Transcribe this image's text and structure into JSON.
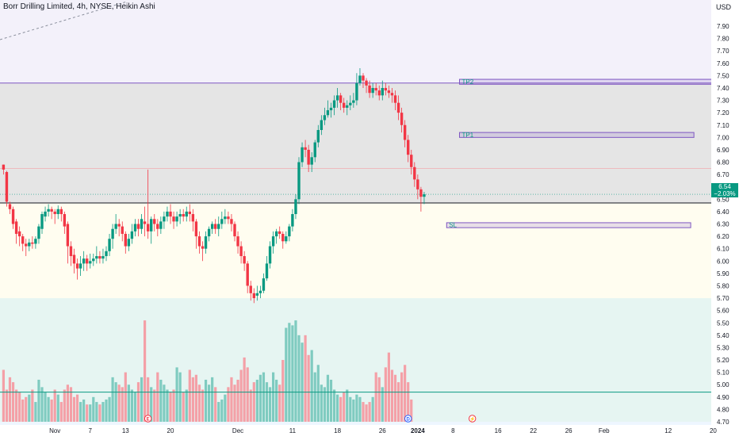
{
  "header": {
    "title": "Borr Drilling Limited, 4h, NYSE, Heikin Ashi",
    "currency": "USD"
  },
  "price_tag": {
    "price": "6.54",
    "change": "−2.03%"
  },
  "event_markers": [
    {
      "label": "E",
      "x_index": 45,
      "color": "#f23645"
    },
    {
      "label": "D",
      "x_index": 126,
      "color": "#2962ff"
    },
    {
      "label": "⚡",
      "x_index": 146,
      "color": "#f23645"
    }
  ],
  "annotations": [
    {
      "label": "TP2",
      "x_start": 142,
      "x_end": 222,
      "y_top": 7.47,
      "y_bottom": 7.43
    },
    {
      "label": "TP1",
      "x_start": 142,
      "x_end": 215,
      "y_top": 7.04,
      "y_bottom": 7.0
    },
    {
      "label": "SL",
      "x_start": 138,
      "x_end": 214,
      "y_top": 6.31,
      "y_bottom": 6.27
    }
  ],
  "zones": [
    {
      "name": "upper-zone",
      "y_from": 7.44,
      "y_to": 6.47,
      "color": "#e5e5e5"
    },
    {
      "name": "mid-zone",
      "y_from": 6.47,
      "y_to": 5.7,
      "color": "#fffdf0"
    },
    {
      "name": "lower-zone",
      "y_from": 5.7,
      "y_to": 4.7,
      "color": "#e6f5f2"
    },
    {
      "name": "top-zone",
      "y_from": 7.9,
      "y_to": 7.44,
      "color": "#f1eff9"
    }
  ],
  "lines": {
    "support": 6.47,
    "current": 6.54,
    "red_level": 6.75,
    "volume_baseline": 4.94
  },
  "colors": {
    "up": "#089981",
    "down": "#f23645",
    "vol_up": "#7fcbc0",
    "vol_down": "#f4a0a7"
  },
  "chart_data": {
    "type": "candlestick",
    "title": "Borr Drilling Limited, 4h, NYSE, Heikin Ashi",
    "currency": "USD",
    "y_range": [
      4.7,
      7.94
    ],
    "y_ticks": [
      "7.90",
      "7.80",
      "7.70",
      "7.60",
      "7.50",
      "7.40",
      "7.30",
      "7.20",
      "7.10",
      "7.00",
      "6.90",
      "6.80",
      "6.70",
      "6.60",
      "6.50",
      "6.40",
      "6.30",
      "6.20",
      "6.10",
      "6.00",
      "5.90",
      "5.80",
      "5.70",
      "5.60",
      "5.50",
      "5.40",
      "5.30",
      "5.20",
      "5.10",
      "5.00",
      "4.90",
      "4.80",
      "4.70"
    ],
    "x_labels": [
      {
        "label": "Nov",
        "x_index": 16
      },
      {
        "label": "7",
        "x_index": 27
      },
      {
        "label": "13",
        "x_index": 38
      },
      {
        "label": "20",
        "x_index": 52
      },
      {
        "label": "Dec",
        "x_index": 73
      },
      {
        "label": "11",
        "x_index": 90
      },
      {
        "label": "18",
        "x_index": 104
      },
      {
        "label": "26",
        "x_index": 118
      },
      {
        "label": "2024",
        "x_index": 129
      },
      {
        "label": "8",
        "x_index": 140
      },
      {
        "label": "16",
        "x_index": 154
      },
      {
        "label": "22",
        "x_index": 165
      },
      {
        "label": "26",
        "x_index": 176
      },
      {
        "label": "Feb",
        "x_index": 187
      },
      {
        "label": "12",
        "x_index": 207
      },
      {
        "label": "20",
        "x_index": 221
      }
    ],
    "candles": [
      [
        6.78,
        6.74,
        6.78,
        6.7
      ],
      [
        6.72,
        6.48,
        6.73,
        6.44
      ],
      [
        6.46,
        6.42,
        6.48,
        6.38
      ],
      [
        6.42,
        6.3,
        6.44,
        6.26
      ],
      [
        6.32,
        6.22,
        6.34,
        6.14
      ],
      [
        6.24,
        6.2,
        6.28,
        6.12
      ],
      [
        6.2,
        6.14,
        6.22,
        6.08
      ],
      [
        6.14,
        6.12,
        6.18,
        6.04
      ],
      [
        6.12,
        6.15,
        6.18,
        6.08
      ],
      [
        6.15,
        6.14,
        6.2,
        6.1
      ],
      [
        6.14,
        6.18,
        6.2,
        6.1
      ],
      [
        6.18,
        6.28,
        6.3,
        6.14
      ],
      [
        6.26,
        6.38,
        6.4,
        6.22
      ],
      [
        6.36,
        6.4,
        6.44,
        6.32
      ],
      [
        6.4,
        6.42,
        6.46,
        6.36
      ],
      [
        6.42,
        6.4,
        6.44,
        6.34
      ],
      [
        6.4,
        6.38,
        6.42,
        6.3
      ],
      [
        6.38,
        6.42,
        6.45,
        6.34
      ],
      [
        6.42,
        6.38,
        6.44,
        6.32
      ],
      [
        6.38,
        6.28,
        6.4,
        6.22
      ],
      [
        6.3,
        6.12,
        6.32,
        5.98
      ],
      [
        6.12,
        6.04,
        6.16,
        5.96
      ],
      [
        6.05,
        5.98,
        6.1,
        5.9
      ],
      [
        5.98,
        5.94,
        6.02,
        5.85
      ],
      [
        5.94,
        5.98,
        6.04,
        5.88
      ],
      [
        5.98,
        6.02,
        6.08,
        5.92
      ],
      [
        6.02,
        5.98,
        6.05,
        5.92
      ],
      [
        5.98,
        6.0,
        6.06,
        5.94
      ],
      [
        6.0,
        6.02,
        6.06,
        5.96
      ],
      [
        6.02,
        6.04,
        6.12,
        5.98
      ],
      [
        6.04,
        6.02,
        6.08,
        5.98
      ],
      [
        6.02,
        6.04,
        6.1,
        5.98
      ],
      [
        6.04,
        6.08,
        6.12,
        6.0
      ],
      [
        6.08,
        6.18,
        6.22,
        6.04
      ],
      [
        6.18,
        6.26,
        6.3,
        6.1
      ],
      [
        6.26,
        6.3,
        6.38,
        6.22
      ],
      [
        6.3,
        6.28,
        6.34,
        6.2
      ],
      [
        6.28,
        6.22,
        6.32,
        6.16
      ],
      [
        6.22,
        6.12,
        6.24,
        6.06
      ],
      [
        6.12,
        6.18,
        6.22,
        6.08
      ],
      [
        6.18,
        6.24,
        6.3,
        6.14
      ],
      [
        6.24,
        6.3,
        6.34,
        6.2
      ],
      [
        6.3,
        6.26,
        6.34,
        6.2
      ],
      [
        6.26,
        6.34,
        6.38,
        6.22
      ],
      [
        6.32,
        6.3,
        6.44,
        6.2
      ],
      [
        6.3,
        6.24,
        6.74,
        6.18
      ],
      [
        6.24,
        6.34,
        6.36,
        6.14
      ],
      [
        6.34,
        6.3,
        6.38,
        6.24
      ],
      [
        6.3,
        6.26,
        6.34,
        6.2
      ],
      [
        6.26,
        6.32,
        6.36,
        6.22
      ],
      [
        6.32,
        6.36,
        6.4,
        6.26
      ],
      [
        6.36,
        6.4,
        6.44,
        6.32
      ],
      [
        6.4,
        6.36,
        6.46,
        6.3
      ],
      [
        6.36,
        6.32,
        6.4,
        6.26
      ],
      [
        6.32,
        6.36,
        6.4,
        6.28
      ],
      [
        6.36,
        6.38,
        6.42,
        6.3
      ],
      [
        6.38,
        6.36,
        6.42,
        6.32
      ],
      [
        6.36,
        6.4,
        6.44,
        6.32
      ],
      [
        6.4,
        6.38,
        6.46,
        6.32
      ],
      [
        6.38,
        6.32,
        6.42,
        6.24
      ],
      [
        6.32,
        6.2,
        6.34,
        6.1
      ],
      [
        6.2,
        6.12,
        6.24,
        6.06
      ],
      [
        6.12,
        6.1,
        6.16,
        6.0
      ],
      [
        6.1,
        6.2,
        6.24,
        6.06
      ],
      [
        6.2,
        6.26,
        6.28,
        6.16
      ],
      [
        6.26,
        6.3,
        6.32,
        6.22
      ],
      [
        6.3,
        6.26,
        6.34,
        6.22
      ],
      [
        6.26,
        6.3,
        6.36,
        6.2
      ],
      [
        6.3,
        6.34,
        6.4,
        6.26
      ],
      [
        6.34,
        6.36,
        6.42,
        6.3
      ],
      [
        6.36,
        6.34,
        6.4,
        6.3
      ],
      [
        6.34,
        6.3,
        6.38,
        6.24
      ],
      [
        6.3,
        6.2,
        6.32,
        6.16
      ],
      [
        6.2,
        6.12,
        6.24,
        6.06
      ],
      [
        6.12,
        6.04,
        6.16,
        5.98
      ],
      [
        6.04,
        5.98,
        6.08,
        5.92
      ],
      [
        5.98,
        5.8,
        6.0,
        5.74
      ],
      [
        5.8,
        5.74,
        5.84,
        5.68
      ],
      [
        5.74,
        5.7,
        5.78,
        5.66
      ],
      [
        5.72,
        5.74,
        5.8,
        5.68
      ],
      [
        5.74,
        5.76,
        5.8,
        5.7
      ],
      [
        5.76,
        5.86,
        5.9,
        5.74
      ],
      [
        5.86,
        5.98,
        6.04,
        5.84
      ],
      [
        5.98,
        6.12,
        6.16,
        5.94
      ],
      [
        6.12,
        6.2,
        6.24,
        6.06
      ],
      [
        6.2,
        6.24,
        6.26,
        6.14
      ],
      [
        6.24,
        6.22,
        6.28,
        6.18
      ],
      [
        6.22,
        6.16,
        6.24,
        6.1
      ],
      [
        6.16,
        6.2,
        6.24,
        6.14
      ],
      [
        6.2,
        6.28,
        6.3,
        6.16
      ],
      [
        6.28,
        6.38,
        6.42,
        6.24
      ],
      [
        6.38,
        6.5,
        6.54,
        6.34
      ],
      [
        6.5,
        6.8,
        6.84,
        6.46
      ],
      [
        6.8,
        6.92,
        6.96,
        6.76
      ],
      [
        6.92,
        6.9,
        6.98,
        6.84
      ],
      [
        6.9,
        6.78,
        6.94,
        6.72
      ],
      [
        6.78,
        6.84,
        6.88,
        6.72
      ],
      [
        6.84,
        6.96,
        6.98,
        6.8
      ],
      [
        6.96,
        7.06,
        7.1,
        6.92
      ],
      [
        7.06,
        7.14,
        7.18,
        7.02
      ],
      [
        7.14,
        7.18,
        7.24,
        7.1
      ],
      [
        7.18,
        7.22,
        7.3,
        7.16
      ],
      [
        7.22,
        7.24,
        7.28,
        7.16
      ],
      [
        7.24,
        7.3,
        7.34,
        7.18
      ],
      [
        7.3,
        7.34,
        7.4,
        7.24
      ],
      [
        7.34,
        7.28,
        7.36,
        7.22
      ],
      [
        7.28,
        7.24,
        7.32,
        7.2
      ],
      [
        7.24,
        7.26,
        7.3,
        7.18
      ],
      [
        7.26,
        7.28,
        7.34,
        7.22
      ],
      [
        7.28,
        7.3,
        7.36,
        7.24
      ],
      [
        7.3,
        7.44,
        7.52,
        7.26
      ],
      [
        7.44,
        7.5,
        7.56,
        7.42
      ],
      [
        7.5,
        7.46,
        7.52,
        7.4
      ],
      [
        7.46,
        7.42,
        7.48,
        7.36
      ],
      [
        7.42,
        7.36,
        7.46,
        7.32
      ],
      [
        7.36,
        7.4,
        7.44,
        7.32
      ],
      [
        7.4,
        7.38,
        7.44,
        7.34
      ],
      [
        7.38,
        7.34,
        7.42,
        7.3
      ],
      [
        7.34,
        7.4,
        7.46,
        7.3
      ],
      [
        7.4,
        7.38,
        7.44,
        7.34
      ],
      [
        7.38,
        7.36,
        7.42,
        7.32
      ],
      [
        7.36,
        7.34,
        7.4,
        7.28
      ],
      [
        7.34,
        7.28,
        7.38,
        7.22
      ],
      [
        7.28,
        7.2,
        7.34,
        7.14
      ],
      [
        7.2,
        7.1,
        7.24,
        7.04
      ],
      [
        7.1,
        6.98,
        7.14,
        6.92
      ],
      [
        6.98,
        6.86,
        7.02,
        6.8
      ],
      [
        6.86,
        6.76,
        6.9,
        6.7
      ],
      [
        6.76,
        6.66,
        6.8,
        6.6
      ],
      [
        6.66,
        6.58,
        6.7,
        6.5
      ],
      [
        6.58,
        6.52,
        6.6,
        6.4
      ],
      [
        6.52,
        6.54,
        6.56,
        6.46
      ]
    ],
    "volumes": [
      5.12,
      4.96,
      5.06,
      5.02,
      4.96,
      4.94,
      4.88,
      4.9,
      4.92,
      4.96,
      4.86,
      5.04,
      4.98,
      4.94,
      4.9,
      4.88,
      4.96,
      4.92,
      4.86,
      4.96,
      5.0,
      4.98,
      4.9,
      4.92,
      4.86,
      4.88,
      4.84,
      4.84,
      4.9,
      4.86,
      4.84,
      4.86,
      4.88,
      4.9,
      5.06,
      5.02,
      5.0,
      4.98,
      5.1,
      5.0,
      4.96,
      4.94,
      5.02,
      5.06,
      5.52,
      5.06,
      4.98,
      4.96,
      5.1,
      5.04,
      5.0,
      4.96,
      4.94,
      4.96,
      5.14,
      5.1,
      4.94,
      4.96,
      5.12,
      5.06,
      5.08,
      5.0,
      4.96,
      5.04,
      5.0,
      5.06,
      4.98,
      4.86,
      4.88,
      4.92,
      4.98,
      5.06,
      5.0,
      5.04,
      5.12,
      5.22,
      5.14,
      4.96,
      5.02,
      5.04,
      5.08,
      5.1,
      5.02,
      4.98,
      5.1,
      5.04,
      5.0,
      5.2,
      5.46,
      5.5,
      5.48,
      5.52,
      5.4,
      5.34,
      5.4,
      5.24,
      5.28,
      5.1,
      5.16,
      5.0,
      4.98,
      5.08,
      5.04,
      4.96,
      4.92,
      4.9,
      4.94,
      4.96,
      4.9,
      4.88,
      4.92,
      4.9,
      4.86,
      4.84,
      4.86,
      4.9,
      5.1,
      5.06,
      4.98,
      5.14,
      5.26,
      5.12,
      5.08,
      5.02,
      5.1,
      5.16,
      5.02,
      4.88
    ]
  }
}
